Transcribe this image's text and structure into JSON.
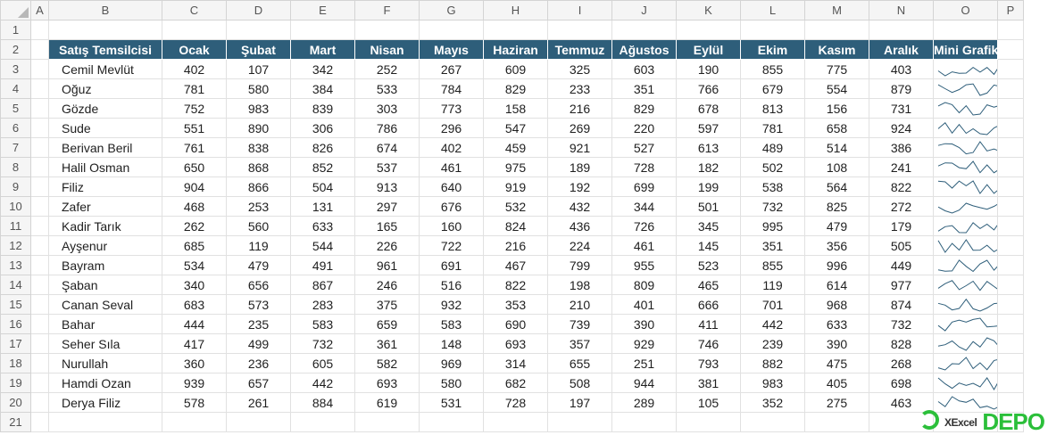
{
  "columns": [
    "A",
    "B",
    "C",
    "D",
    "E",
    "F",
    "G",
    "H",
    "I",
    "J",
    "K",
    "L",
    "M",
    "N",
    "O",
    "P"
  ],
  "header_row": [
    "Satış Temsilcisi",
    "Ocak",
    "Şubat",
    "Mart",
    "Nisan",
    "Mayıs",
    "Haziran",
    "Temmuz",
    "Ağustos",
    "Eylül",
    "Ekim",
    "Kasım",
    "Aralık",
    "Mini Grafik"
  ],
  "rows": [
    {
      "name": "Cemil Mevlüt",
      "values": [
        402,
        107,
        342,
        252,
        267,
        609,
        325,
        603,
        190,
        855,
        775,
        403
      ]
    },
    {
      "name": "Oğuz",
      "values": [
        781,
        580,
        384,
        533,
        784,
        829,
        233,
        351,
        766,
        679,
        554,
        879
      ]
    },
    {
      "name": "Gözde",
      "values": [
        752,
        983,
        839,
        303,
        773,
        158,
        216,
        829,
        678,
        813,
        156,
        731
      ]
    },
    {
      "name": "Sude",
      "values": [
        551,
        890,
        306,
        786,
        296,
        547,
        269,
        220,
        597,
        781,
        658,
        924
      ]
    },
    {
      "name": "Berivan Beril",
      "values": [
        761,
        838,
        826,
        674,
        402,
        459,
        921,
        527,
        613,
        489,
        514,
        386
      ]
    },
    {
      "name": "Halil Osman",
      "values": [
        650,
        868,
        852,
        537,
        461,
        975,
        189,
        728,
        182,
        502,
        108,
        241
      ]
    },
    {
      "name": "Filiz",
      "values": [
        904,
        866,
        504,
        913,
        640,
        919,
        192,
        699,
        199,
        538,
        564,
        822
      ]
    },
    {
      "name": "Zafer",
      "values": [
        468,
        253,
        131,
        297,
        676,
        532,
        432,
        344,
        501,
        732,
        825,
        272
      ]
    },
    {
      "name": "Kadir Tarık",
      "values": [
        262,
        560,
        633,
        165,
        160,
        824,
        436,
        726,
        345,
        995,
        479,
        179
      ]
    },
    {
      "name": "Ayşenur",
      "values": [
        685,
        119,
        544,
        226,
        722,
        216,
        224,
        461,
        145,
        351,
        356,
        505
      ]
    },
    {
      "name": "Bayram",
      "values": [
        534,
        479,
        491,
        961,
        691,
        467,
        799,
        955,
        523,
        855,
        996,
        449
      ]
    },
    {
      "name": "Şaban",
      "values": [
        340,
        656,
        867,
        246,
        516,
        822,
        198,
        809,
        465,
        119,
        614,
        977
      ]
    },
    {
      "name": "Canan Seval",
      "values": [
        683,
        573,
        283,
        375,
        932,
        353,
        210,
        401,
        666,
        701,
        968,
        874
      ]
    },
    {
      "name": "Bahar",
      "values": [
        444,
        235,
        583,
        659,
        583,
        690,
        739,
        390,
        411,
        442,
        633,
        732
      ]
    },
    {
      "name": "Seher Sıla",
      "values": [
        417,
        499,
        732,
        361,
        148,
        693,
        357,
        929,
        746,
        239,
        390,
        828
      ]
    },
    {
      "name": "Nurullah",
      "values": [
        360,
        236,
        605,
        582,
        969,
        314,
        655,
        251,
        793,
        882,
        475,
        268
      ]
    },
    {
      "name": "Hamdi Ozan",
      "values": [
        939,
        657,
        442,
        693,
        580,
        682,
        508,
        944,
        381,
        983,
        405,
        698
      ]
    },
    {
      "name": "Derya Filiz",
      "values": [
        578,
        261,
        884,
        619,
        531,
        728,
        197,
        289,
        105,
        352,
        275,
        463
      ]
    }
  ],
  "logo": {
    "small": "XExcel",
    "big": "DEPO"
  },
  "colors": {
    "header_bg": "#2e5e7a",
    "header_fg": "#ffffff",
    "sparkline": "#2e5e7a",
    "logo": "#2bbf3a"
  }
}
